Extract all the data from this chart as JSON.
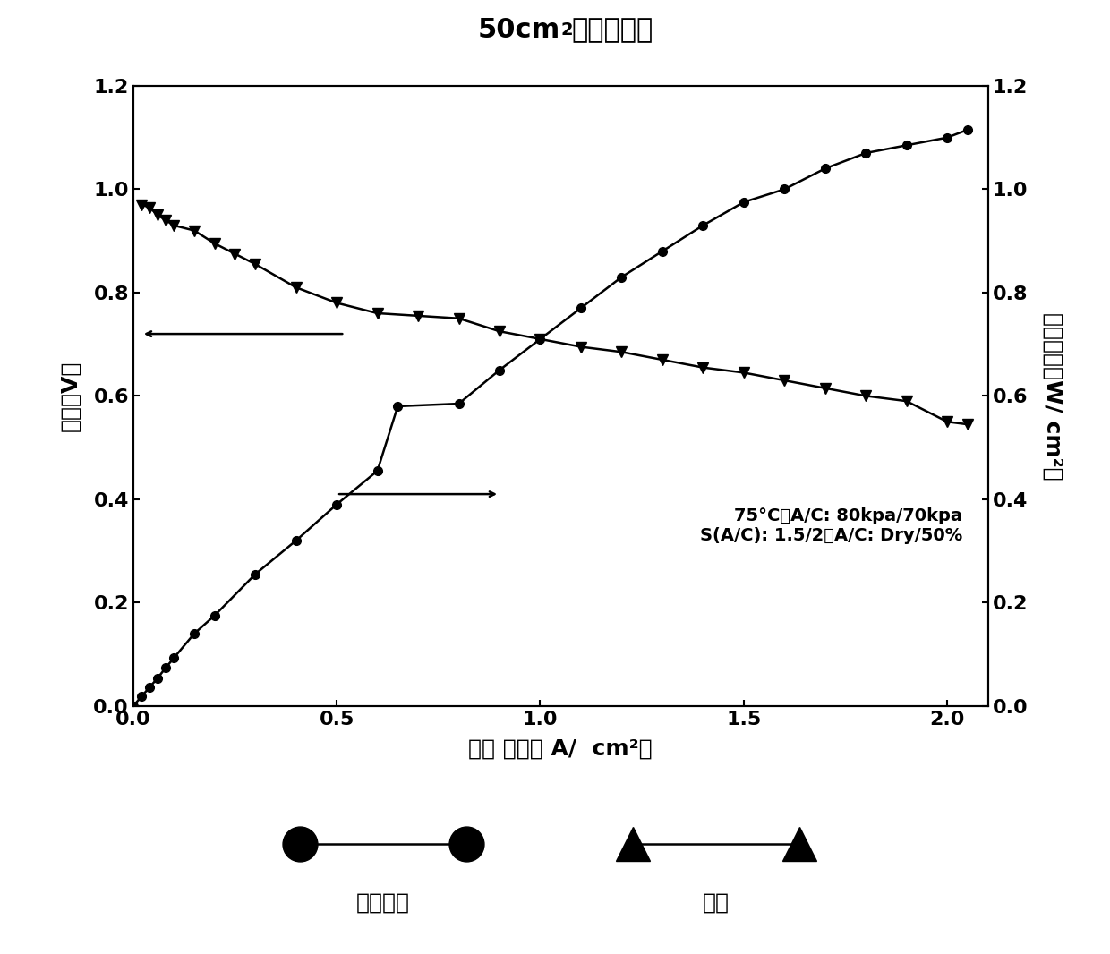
{
  "title_parts": [
    "50cm",
    "2",
    "单电池测试"
  ],
  "xlabel": "电流 密度（ A/  cm²）",
  "ylabel_left": "电压（V）",
  "ylabel_right": "功率密度（W/ cm²）",
  "annotation_line1": "75°C，A/C: 80kpa/70kpa",
  "annotation_line2": "S(A/C): 1.5/2，A/C: Dry/50%",
  "xlim": [
    0,
    2.1
  ],
  "ylim_left": [
    0,
    1.2
  ],
  "ylim_right": [
    0,
    1.2
  ],
  "xticks": [
    0.0,
    0.5,
    1.0,
    1.5,
    2.0
  ],
  "yticks_left": [
    0.0,
    0.2,
    0.4,
    0.6,
    0.8,
    1.0,
    1.2
  ],
  "yticks_right": [
    0.0,
    0.2,
    0.4,
    0.6,
    0.8,
    1.0,
    1.2
  ],
  "power_density_x": [
    0.0,
    0.02,
    0.04,
    0.06,
    0.08,
    0.1,
    0.15,
    0.2,
    0.3,
    0.4,
    0.5,
    0.6,
    0.65,
    0.8,
    0.9,
    1.0,
    1.1,
    1.2,
    1.3,
    1.4,
    1.5,
    1.6,
    1.7,
    1.8,
    1.9,
    2.0,
    2.05
  ],
  "power_density_y": [
    0.0,
    0.018,
    0.036,
    0.054,
    0.074,
    0.093,
    0.14,
    0.175,
    0.255,
    0.32,
    0.39,
    0.455,
    0.58,
    0.585,
    0.65,
    0.71,
    0.77,
    0.83,
    0.88,
    0.93,
    0.975,
    1.0,
    1.04,
    1.07,
    1.085,
    1.1,
    1.115
  ],
  "voltage_x": [
    0.02,
    0.04,
    0.06,
    0.08,
    0.1,
    0.15,
    0.2,
    0.25,
    0.3,
    0.4,
    0.5,
    0.6,
    0.7,
    0.8,
    0.9,
    1.0,
    1.1,
    1.2,
    1.3,
    1.4,
    1.5,
    1.6,
    1.7,
    1.8,
    1.9,
    2.0,
    2.05
  ],
  "voltage_y": [
    0.97,
    0.965,
    0.95,
    0.94,
    0.93,
    0.92,
    0.895,
    0.875,
    0.855,
    0.81,
    0.78,
    0.76,
    0.755,
    0.75,
    0.725,
    0.71,
    0.695,
    0.685,
    0.67,
    0.655,
    0.645,
    0.63,
    0.615,
    0.6,
    0.59,
    0.55,
    0.545
  ],
  "legend_label_power": "功率密度",
  "legend_label_voltage": "电压",
  "background_color": "#ffffff",
  "line_color": "#000000"
}
